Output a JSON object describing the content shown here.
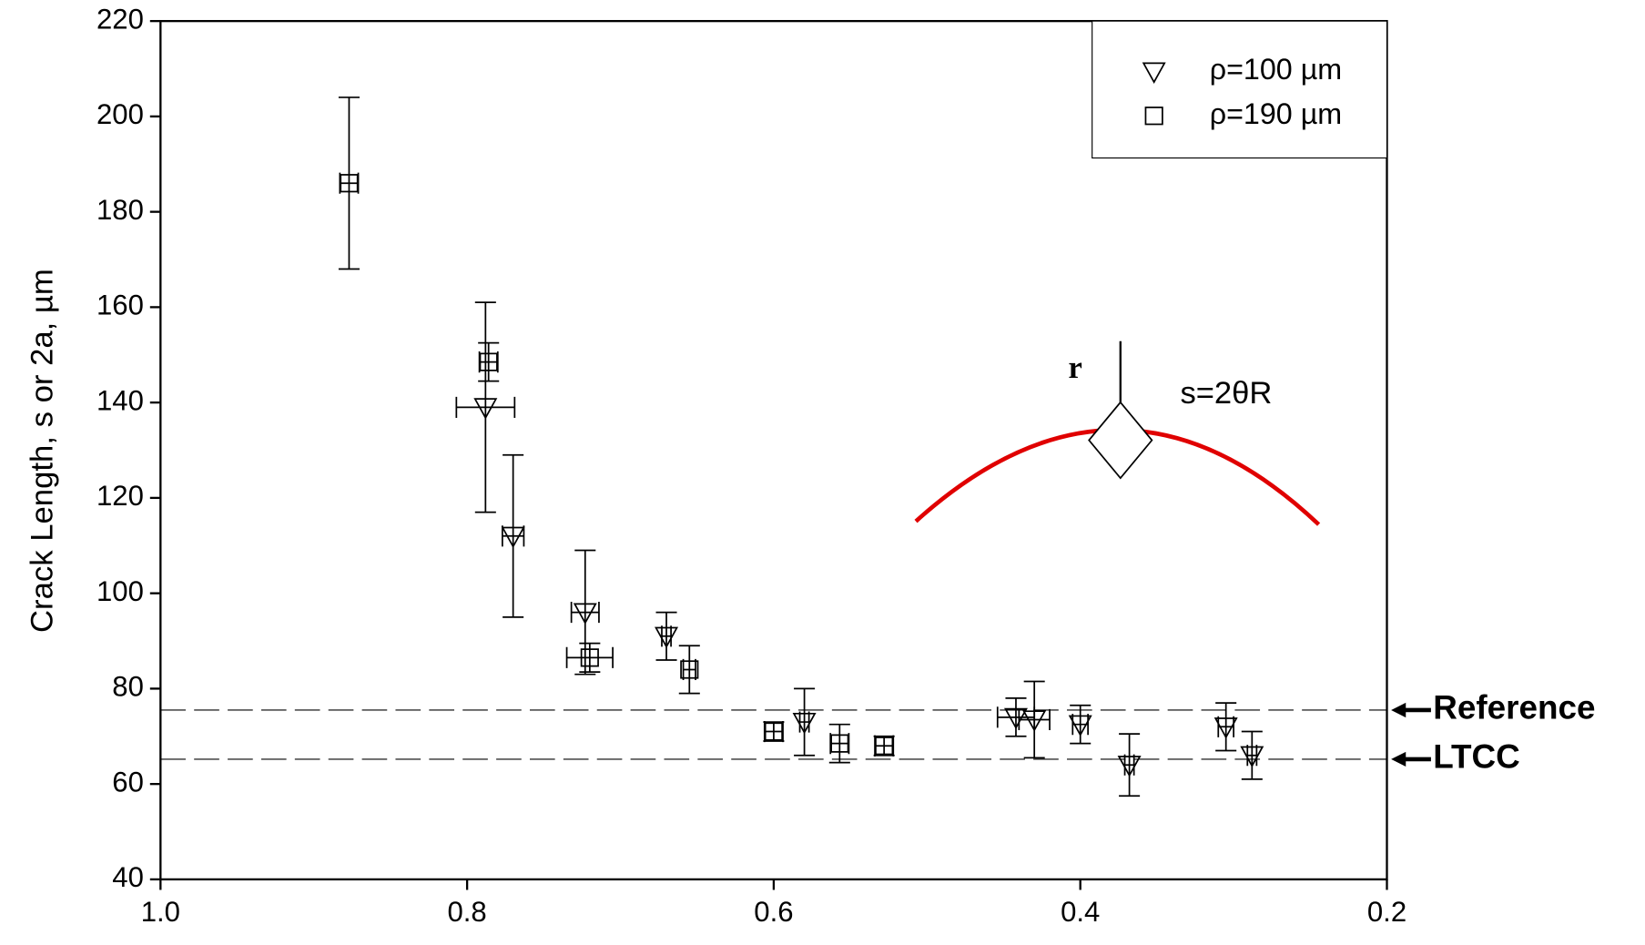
{
  "chart_data": {
    "type": "scatter",
    "ylabel": "Crack Length, s or 2a, µm",
    "xlim": [
      1.0,
      0.2
    ],
    "xticks": [
      {
        "value": 1.0,
        "label": "1.0"
      },
      {
        "value": 0.8,
        "label": "0.8"
      },
      {
        "value": 0.6,
        "label": "0.6"
      },
      {
        "value": 0.4,
        "label": "0.4"
      },
      {
        "value": 0.2,
        "label": "0.2"
      }
    ],
    "ylim": [
      40,
      220
    ],
    "yticks": [
      40,
      60,
      80,
      100,
      120,
      140,
      160,
      180,
      200,
      220
    ],
    "legend": "upper right",
    "series": [
      {
        "name": "ρ=100 µm",
        "marker": "triangle-down",
        "color": "#000000",
        "x": [
          0.788,
          0.77,
          0.723,
          0.67,
          0.58,
          0.442,
          0.43,
          0.4,
          0.368,
          0.305,
          0.288
        ],
        "values": [
          139,
          112,
          96,
          91,
          73,
          74,
          73.5,
          72.5,
          64,
          72,
          66
        ],
        "yerr": [
          22,
          17,
          13,
          5,
          7,
          4,
          8,
          4,
          6.5,
          5,
          5
        ],
        "xerr": [
          0.019,
          0.007,
          0.009,
          0.003,
          0.003,
          0.012,
          0.01,
          0.005,
          0.003,
          0.005,
          0.003
        ]
      },
      {
        "name": "ρ=190 µm",
        "marker": "square",
        "color": "#000000",
        "x": [
          0.877,
          0.786,
          0.72,
          0.655,
          0.6,
          0.557,
          0.528
        ],
        "values": [
          186,
          148.5,
          86.5,
          84,
          71,
          68.5,
          68
        ],
        "yerr": [
          18,
          4,
          3,
          5,
          2,
          4,
          2
        ],
        "xerr": [
          0.006,
          0.006,
          0.015,
          0.004,
          0.006,
          0.006,
          0.006
        ]
      }
    ],
    "hlines": [
      {
        "value": 75.5,
        "label": "Reference"
      },
      {
        "value": 65.2,
        "label": "LTCC"
      }
    ],
    "inset": {
      "formula": "s=2θR",
      "symbol": "r"
    }
  }
}
